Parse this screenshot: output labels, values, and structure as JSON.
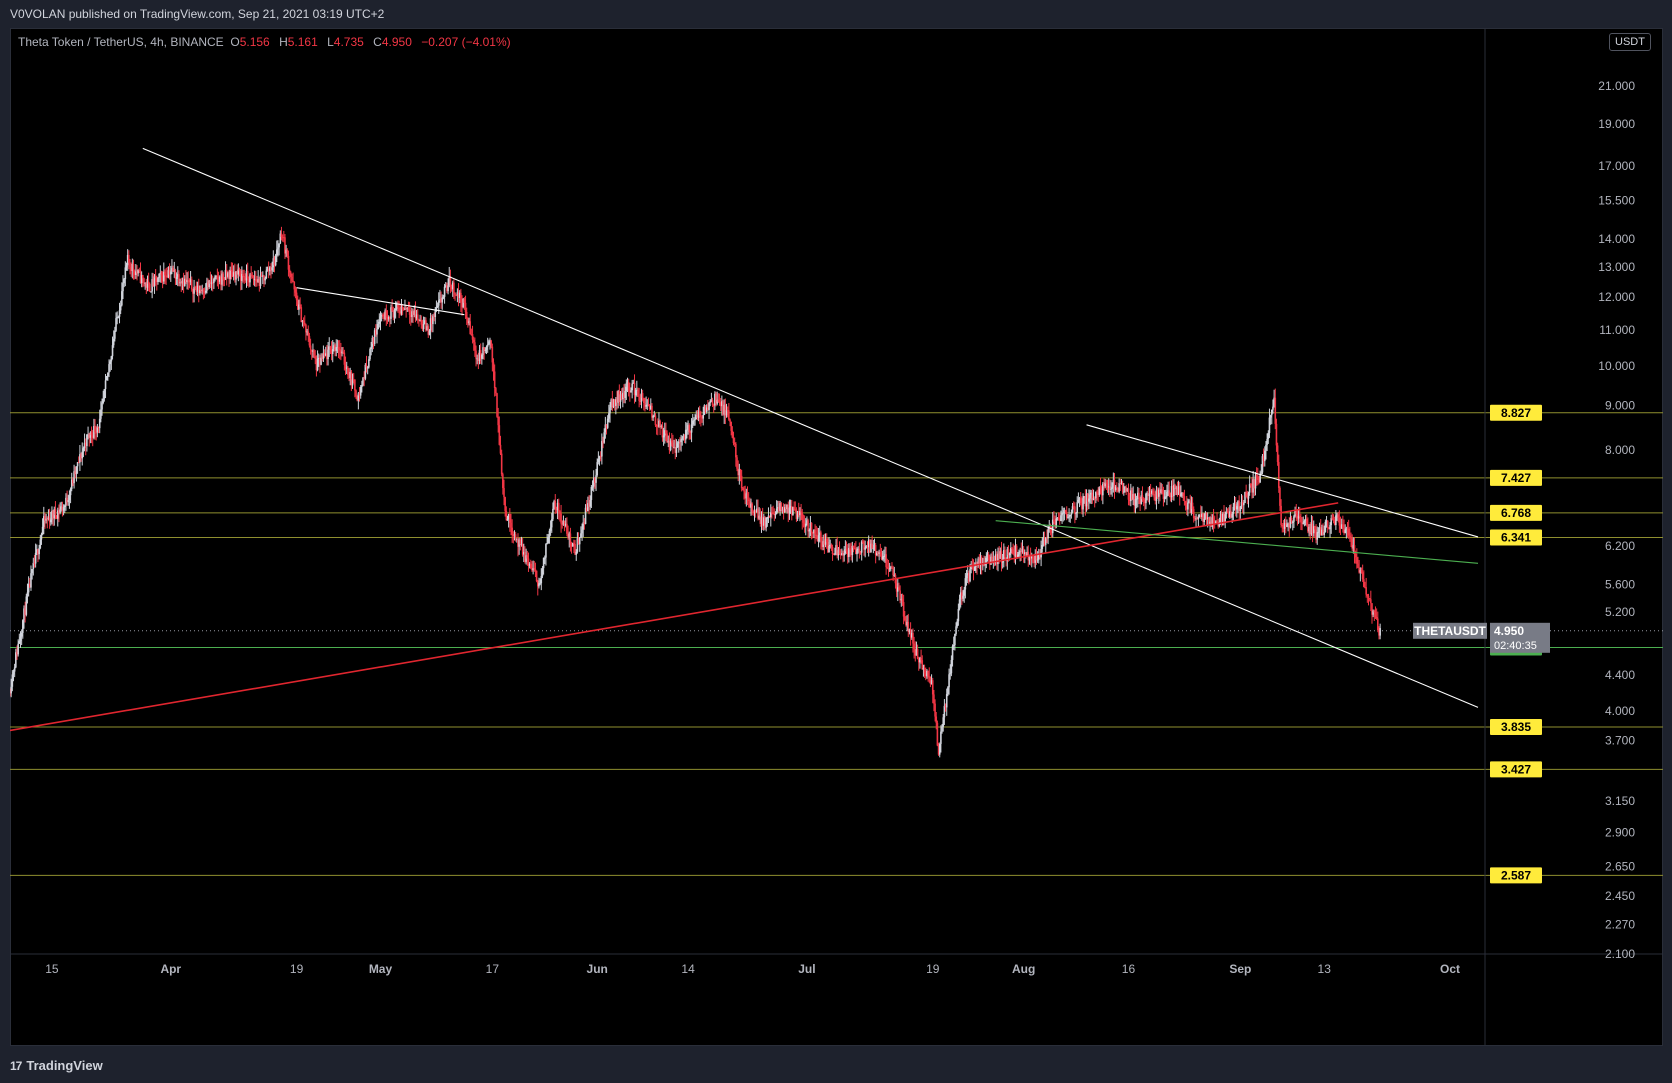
{
  "header": {
    "publish_text": "V0VOLAN published on TradingView.com, Sep 21, 2021 03:19 UTC+2"
  },
  "legend": {
    "symbol": "Theta Token / TetherUS, 4h, BINANCE",
    "open_label": "O",
    "open": "5.156",
    "high_label": "H",
    "high": "5.161",
    "low_label": "L",
    "low": "4.735",
    "close_label": "C",
    "close": "4.950",
    "change": "−0.207 (−4.01%)"
  },
  "currency_badge": "USDT",
  "footer": {
    "brand": "TradingView",
    "mark": "17"
  },
  "colors": {
    "background": "#000000",
    "up": "#d1d4dc",
    "down": "#f23645",
    "level_line": "#8f8f2f",
    "level_label_bg": "#ffeb3b",
    "support_line": "#e0262f",
    "trend_line": "#ffffff",
    "green_line": "#4caf50",
    "price_now_bg": "#787b86",
    "low_label_bg": "#4caf50"
  },
  "chart_data": {
    "type": "candlestick",
    "y_scale": "log",
    "ylim": [
      2.1,
      24.5
    ],
    "y_ticks": [
      21.0,
      19.0,
      17.0,
      15.5,
      14.0,
      13.0,
      12.0,
      11.0,
      10.0,
      9.0,
      8.0,
      6.2,
      5.6,
      5.2,
      4.4,
      4.0,
      3.7,
      3.15,
      2.9,
      2.65,
      2.45,
      2.27,
      2.1
    ],
    "y_tick_labels": [
      "21.000",
      "19.000",
      "17.000",
      "15.500",
      "14.000",
      "13.000",
      "12.000",
      "11.000",
      "10.000",
      "9.000",
      "8.000",
      "6.200",
      "5.600",
      "5.200",
      "4.400",
      "4.000",
      "3.700",
      "3.150",
      "2.900",
      "2.650",
      "2.450",
      "2.270",
      "2.100"
    ],
    "x_range": [
      "2021-03-09",
      "2021-10-06"
    ],
    "x_ticks": [
      {
        "date": "2021-03-15",
        "label": "15",
        "bold": false
      },
      {
        "date": "2021-04-01",
        "label": "Apr",
        "bold": true
      },
      {
        "date": "2021-04-19",
        "label": "19",
        "bold": false
      },
      {
        "date": "2021-05-01",
        "label": "May",
        "bold": true
      },
      {
        "date": "2021-05-17",
        "label": "17",
        "bold": false
      },
      {
        "date": "2021-06-01",
        "label": "Jun",
        "bold": true
      },
      {
        "date": "2021-06-14",
        "label": "14",
        "bold": false
      },
      {
        "date": "2021-07-01",
        "label": "Jul",
        "bold": true
      },
      {
        "date": "2021-07-19",
        "label": "19",
        "bold": false
      },
      {
        "date": "2021-08-01",
        "label": "Aug",
        "bold": true
      },
      {
        "date": "2021-08-16",
        "label": "16",
        "bold": false
      },
      {
        "date": "2021-09-01",
        "label": "Sep",
        "bold": true
      },
      {
        "date": "2021-09-13",
        "label": "13",
        "bold": false
      },
      {
        "date": "2021-10-01",
        "label": "Oct",
        "bold": true
      }
    ],
    "horizontal_levels": [
      {
        "value": 8.827,
        "label": "8.827"
      },
      {
        "value": 7.427,
        "label": "7.427"
      },
      {
        "value": 6.768,
        "label": "6.768"
      },
      {
        "value": 6.341,
        "label": "6.341"
      },
      {
        "value": 3.835,
        "label": "3.835"
      },
      {
        "value": 3.427,
        "label": "3.427"
      },
      {
        "value": 2.587,
        "label": "2.587"
      }
    ],
    "low_level": {
      "value": 4.735,
      "label": "4.735"
    },
    "current_price": {
      "value": 4.95,
      "label": "4.950",
      "symbol": "THETAUSDT",
      "countdown": "02:40:35"
    },
    "trend_lines": [
      {
        "kind": "white",
        "from": [
          "2021-03-28",
          17.8
        ],
        "to": [
          "2021-10-05",
          4.04
        ]
      },
      {
        "kind": "white",
        "from": [
          "2021-04-19",
          12.3
        ],
        "to": [
          "2021-05-13",
          11.45
        ]
      },
      {
        "kind": "white",
        "from": [
          "2021-08-10",
          8.55
        ],
        "to": [
          "2021-10-05",
          6.35
        ]
      },
      {
        "kind": "red",
        "from": [
          "2021-03-09",
          3.8
        ],
        "to": [
          "2021-09-15",
          6.95
        ]
      },
      {
        "kind": "green",
        "from": [
          "2021-07-28",
          6.63
        ],
        "to": [
          "2021-10-05",
          5.92
        ]
      }
    ],
    "path": [
      [
        "2021-03-09",
        4.2
      ],
      [
        "2021-03-12",
        5.6
      ],
      [
        "2021-03-14",
        6.6
      ],
      [
        "2021-03-17",
        6.9
      ],
      [
        "2021-03-20",
        8.2
      ],
      [
        "2021-03-22",
        8.6
      ],
      [
        "2021-03-24",
        10.8
      ],
      [
        "2021-03-26",
        13.2
      ],
      [
        "2021-03-29",
        12.3
      ],
      [
        "2021-04-01",
        12.9
      ],
      [
        "2021-04-05",
        12.2
      ],
      [
        "2021-04-10",
        12.8
      ],
      [
        "2021-04-14",
        12.5
      ],
      [
        "2021-04-16",
        13.2
      ],
      [
        "2021-04-17",
        14.3
      ],
      [
        "2021-04-19",
        12.0
      ],
      [
        "2021-04-22",
        10.0
      ],
      [
        "2021-04-25",
        10.6
      ],
      [
        "2021-04-28",
        9.2
      ],
      [
        "2021-05-01",
        11.4
      ],
      [
        "2021-05-05",
        11.7
      ],
      [
        "2021-05-08",
        11.0
      ],
      [
        "2021-05-11",
        12.5
      ],
      [
        "2021-05-13",
        11.8
      ],
      [
        "2021-05-15",
        10.2
      ],
      [
        "2021-05-17",
        10.6
      ],
      [
        "2021-05-19",
        6.8
      ],
      [
        "2021-05-21",
        6.2
      ],
      [
        "2021-05-24",
        5.6
      ],
      [
        "2021-05-26",
        7.0
      ],
      [
        "2021-05-29",
        6.1
      ],
      [
        "2021-06-01",
        7.5
      ],
      [
        "2021-06-03",
        9.0
      ],
      [
        "2021-06-06",
        9.5
      ],
      [
        "2021-06-09",
        8.8
      ],
      [
        "2021-06-12",
        8.0
      ],
      [
        "2021-06-15",
        8.6
      ],
      [
        "2021-06-18",
        9.2
      ],
      [
        "2021-06-20",
        8.7
      ],
      [
        "2021-06-22",
        7.1
      ],
      [
        "2021-06-25",
        6.6
      ],
      [
        "2021-06-28",
        6.9
      ],
      [
        "2021-07-01",
        6.6
      ],
      [
        "2021-07-04",
        6.2
      ],
      [
        "2021-07-07",
        6.1
      ],
      [
        "2021-07-10",
        6.2
      ],
      [
        "2021-07-13",
        5.9
      ],
      [
        "2021-07-15",
        5.2
      ],
      [
        "2021-07-17",
        4.6
      ],
      [
        "2021-07-19",
        4.3
      ],
      [
        "2021-07-20",
        3.6
      ],
      [
        "2021-07-21",
        4.1
      ],
      [
        "2021-07-23",
        5.4
      ],
      [
        "2021-07-25",
        5.9
      ],
      [
        "2021-07-28",
        6.0
      ],
      [
        "2021-07-31",
        6.1
      ],
      [
        "2021-08-03",
        6.0
      ],
      [
        "2021-08-06",
        6.7
      ],
      [
        "2021-08-09",
        6.9
      ],
      [
        "2021-08-12",
        7.2
      ],
      [
        "2021-08-15",
        7.3
      ],
      [
        "2021-08-17",
        7.0
      ],
      [
        "2021-08-20",
        7.1
      ],
      [
        "2021-08-23",
        7.2
      ],
      [
        "2021-08-26",
        6.7
      ],
      [
        "2021-08-29",
        6.6
      ],
      [
        "2021-09-01",
        6.9
      ],
      [
        "2021-09-04",
        7.5
      ],
      [
        "2021-09-06",
        9.2
      ],
      [
        "2021-09-07",
        6.5
      ],
      [
        "2021-09-09",
        6.7
      ],
      [
        "2021-09-12",
        6.4
      ],
      [
        "2021-09-15",
        6.7
      ],
      [
        "2021-09-17",
        6.3
      ],
      [
        "2021-09-19",
        5.5
      ],
      [
        "2021-09-21",
        4.95
      ]
    ]
  }
}
